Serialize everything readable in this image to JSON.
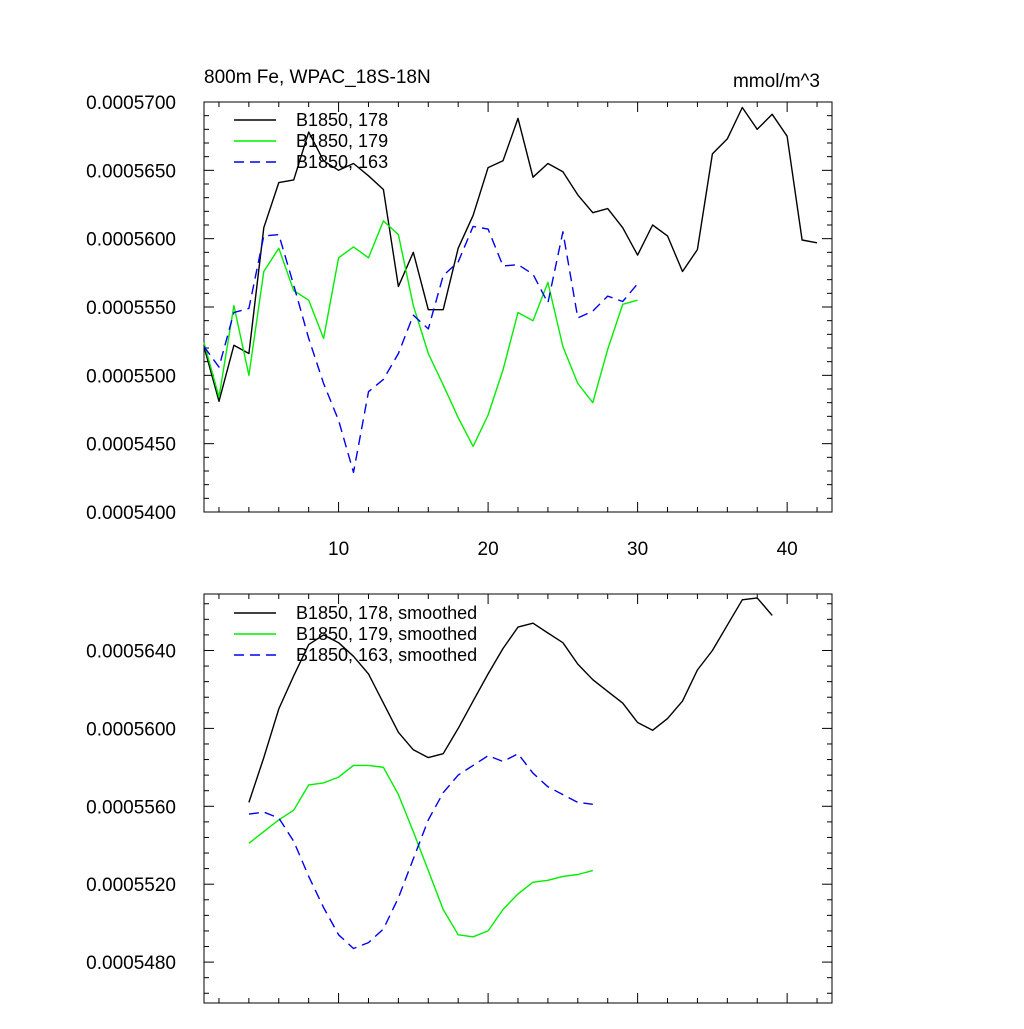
{
  "chart_data": [
    {
      "type": "line",
      "title": "800m Fe, WPAC_18S-18N",
      "units": "mmol/m^3",
      "xlabel": "",
      "ylabel": "",
      "xlim": [
        1,
        43
      ],
      "ylim": [
        0.00054,
        0.00057
      ],
      "x_ticks": [
        10,
        20,
        30,
        40
      ],
      "x_tick_labels": [
        "10",
        "20",
        "30",
        "40"
      ],
      "y_ticks": [
        0.00054,
        0.000545,
        0.00055,
        0.000555,
        0.00056,
        0.000565,
        0.00057
      ],
      "y_tick_labels": [
        "0.0005400",
        "0.0005450",
        "0.0005500",
        "0.0005550",
        "0.0005600",
        "0.0005650",
        "0.0005700"
      ],
      "legend_position": "top-left",
      "series": [
        {
          "name": "B1850, 178",
          "color": "#000000",
          "dash": "solid",
          "x": [
            1,
            2,
            3,
            4,
            5,
            6,
            7,
            8,
            9,
            10,
            11,
            12,
            13,
            14,
            15,
            16,
            17,
            18,
            19,
            20,
            21,
            22,
            23,
            24,
            25,
            26,
            27,
            28,
            29,
            30,
            31,
            32,
            33,
            34,
            35,
            36,
            37,
            38,
            39,
            40,
            41,
            42
          ],
          "y": [
            0.0005521,
            0.0005481,
            0.0005522,
            0.0005516,
            0.0005608,
            0.0005641,
            0.0005643,
            0.0005678,
            0.0005657,
            0.000565,
            0.0005655,
            0.0005646,
            0.0005636,
            0.0005565,
            0.000559,
            0.0005548,
            0.0005548,
            0.0005593,
            0.0005617,
            0.0005652,
            0.0005657,
            0.0005688,
            0.0005645,
            0.0005655,
            0.0005649,
            0.0005632,
            0.0005619,
            0.0005622,
            0.0005608,
            0.0005588,
            0.000561,
            0.0005602,
            0.0005576,
            0.0005592,
            0.0005662,
            0.0005673,
            0.0005696,
            0.000568,
            0.0005691,
            0.0005675,
            0.0005599,
            0.0005597
          ]
        },
        {
          "name": "B1850, 179",
          "color": "#00ee00",
          "dash": "solid",
          "x": [
            1,
            2,
            3,
            4,
            5,
            6,
            7,
            8,
            9,
            10,
            11,
            12,
            13,
            14,
            15,
            16,
            17,
            18,
            19,
            20,
            21,
            22,
            23,
            24,
            25,
            26,
            27,
            28,
            29,
            30
          ],
          "y": [
            0.0005524,
            0.0005484,
            0.0005551,
            0.00055,
            0.0005576,
            0.0005593,
            0.0005562,
            0.0005555,
            0.0005527,
            0.0005586,
            0.0005594,
            0.0005586,
            0.0005613,
            0.0005603,
            0.0005551,
            0.0005516,
            0.0005493,
            0.0005469,
            0.0005448,
            0.0005471,
            0.0005504,
            0.0005546,
            0.000554,
            0.0005568,
            0.0005521,
            0.0005494,
            0.000548,
            0.0005519,
            0.0005552,
            0.0005555
          ]
        },
        {
          "name": "B1850, 163",
          "color": "#0000ee",
          "dash": "dashed",
          "x": [
            1,
            2,
            3,
            4,
            5,
            6,
            7,
            8,
            9,
            10,
            11,
            12,
            13,
            14,
            15,
            16,
            17,
            18,
            19,
            20,
            21,
            22,
            23,
            24,
            25,
            26,
            27,
            28,
            29,
            30
          ],
          "y": [
            0.0005521,
            0.0005506,
            0.0005546,
            0.0005549,
            0.0005602,
            0.0005603,
            0.0005566,
            0.0005527,
            0.0005494,
            0.0005467,
            0.0005429,
            0.0005488,
            0.0005497,
            0.0005516,
            0.0005544,
            0.0005534,
            0.0005573,
            0.0005583,
            0.0005609,
            0.0005607,
            0.000558,
            0.0005581,
            0.0005574,
            0.0005553,
            0.0005605,
            0.0005542,
            0.0005547,
            0.0005558,
            0.0005554,
            0.0005567
          ]
        }
      ]
    },
    {
      "type": "line",
      "title": "",
      "xlabel": "",
      "ylabel": "",
      "xlim": [
        1,
        43
      ],
      "ylim": [
        0.0005459,
        0.0005669
      ],
      "x_ticks": [
        10,
        20,
        30,
        40
      ],
      "x_tick_labels": [],
      "y_ticks": [
        0.000548,
        0.000552,
        0.000556,
        0.00056,
        0.000564
      ],
      "y_tick_labels": [
        "0.0005480",
        "0.0005520",
        "0.0005560",
        "0.0005600",
        "0.0005640"
      ],
      "legend_position": "top-left",
      "series": [
        {
          "name": "B1850, 178, smoothed",
          "color": "#000000",
          "dash": "solid",
          "x": [
            4,
            5,
            6,
            7,
            8,
            9,
            10,
            11,
            12,
            13,
            14,
            15,
            16,
            17,
            18,
            19,
            20,
            21,
            22,
            23,
            24,
            25,
            26,
            27,
            28,
            29,
            30,
            31,
            32,
            33,
            34,
            35,
            36,
            37,
            38,
            39
          ],
          "y": [
            0.0005562,
            0.0005585,
            0.000561,
            0.0005627,
            0.0005643,
            0.0005648,
            0.0005644,
            0.0005637,
            0.0005628,
            0.0005613,
            0.0005598,
            0.0005589,
            0.0005585,
            0.0005587,
            0.00056,
            0.0005614,
            0.0005628,
            0.0005641,
            0.0005652,
            0.0005654,
            0.0005649,
            0.0005644,
            0.0005633,
            0.0005625,
            0.0005619,
            0.0005613,
            0.0005603,
            0.0005599,
            0.0005605,
            0.0005614,
            0.000563,
            0.000564,
            0.0005653,
            0.0005666,
            0.0005667,
            0.0005658
          ]
        },
        {
          "name": "B1850, 179, smoothed",
          "color": "#00ee00",
          "dash": "solid",
          "x": [
            4,
            5,
            6,
            7,
            8,
            9,
            10,
            11,
            12,
            13,
            14,
            15,
            16,
            17,
            18,
            19,
            20,
            21,
            22,
            23,
            24,
            25,
            26,
            27
          ],
          "y": [
            0.0005541,
            0.0005547,
            0.0005553,
            0.0005558,
            0.0005571,
            0.0005572,
            0.0005575,
            0.0005581,
            0.0005581,
            0.000558,
            0.0005566,
            0.0005547,
            0.0005527,
            0.0005507,
            0.0005494,
            0.0005493,
            0.0005496,
            0.0005507,
            0.0005515,
            0.0005521,
            0.0005522,
            0.0005524,
            0.0005525,
            0.0005527
          ]
        },
        {
          "name": "B1850, 163, smoothed",
          "color": "#0000ee",
          "dash": "dashed",
          "x": [
            4,
            5,
            6,
            7,
            8,
            9,
            10,
            11,
            12,
            13,
            14,
            15,
            16,
            17,
            18,
            19,
            20,
            21,
            22,
            23,
            24,
            25,
            26,
            27
          ],
          "y": [
            0.0005556,
            0.0005557,
            0.0005554,
            0.0005542,
            0.0005524,
            0.0005508,
            0.0005494,
            0.0005487,
            0.000549,
            0.0005497,
            0.0005513,
            0.0005533,
            0.0005553,
            0.0005567,
            0.0005576,
            0.0005581,
            0.0005586,
            0.0005583,
            0.0005587,
            0.0005577,
            0.000557,
            0.0005566,
            0.0005562,
            0.0005561
          ]
        }
      ]
    }
  ]
}
